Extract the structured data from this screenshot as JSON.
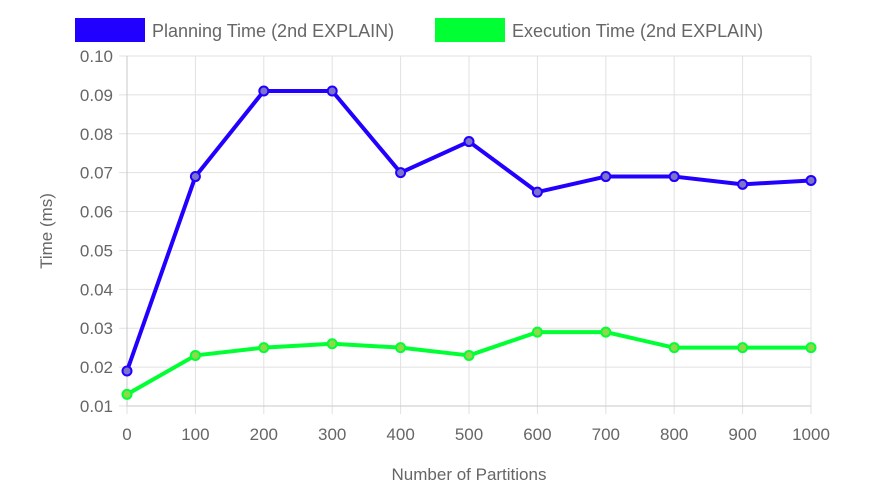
{
  "chart_data": {
    "type": "line",
    "title": "",
    "xlabel": "Number of Partitions",
    "ylabel": "Time (ms)",
    "x": [
      0,
      100,
      200,
      300,
      400,
      500,
      600,
      700,
      800,
      900,
      1000
    ],
    "x_tick_labels": [
      "0",
      "100",
      "200",
      "300",
      "400",
      "500",
      "600",
      "700",
      "800",
      "900",
      "1000"
    ],
    "y_tick_labels": [
      "0.01",
      "0.02",
      "0.03",
      "0.04",
      "0.05",
      "0.06",
      "0.07",
      "0.08",
      "0.09",
      "0.10"
    ],
    "ylim": [
      0.01,
      0.1
    ],
    "xlim": [
      0,
      1000
    ],
    "grid": true,
    "legend_position": "top",
    "series": [
      {
        "name": "Planning Time (2nd EXPLAIN)",
        "color": "#2200ff",
        "values": [
          0.019,
          0.069,
          0.091,
          0.091,
          0.07,
          0.078,
          0.065,
          0.069,
          0.069,
          0.067,
          0.068
        ]
      },
      {
        "name": "Execution Time (2nd EXPLAIN)",
        "color": "#00ff33",
        "values": [
          0.013,
          0.023,
          0.025,
          0.026,
          0.025,
          0.023,
          0.029,
          0.029,
          0.025,
          0.025,
          0.025
        ]
      }
    ]
  }
}
